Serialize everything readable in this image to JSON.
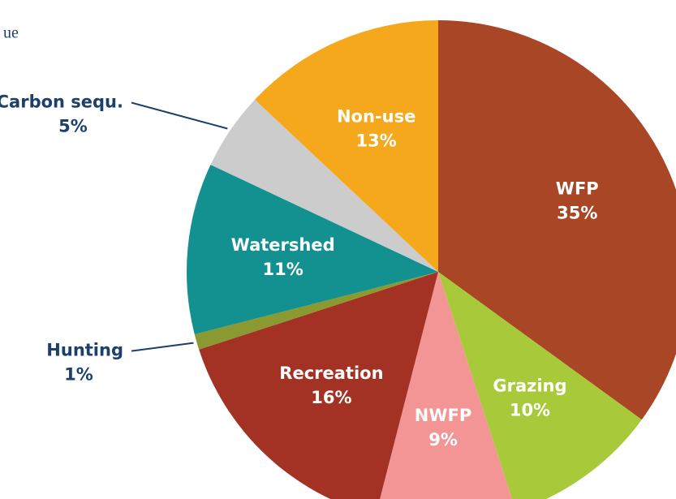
{
  "chart_data": {
    "type": "pie",
    "title": "ue",
    "categories": [
      "WFP",
      "Grazing",
      "NWFP",
      "Recreation",
      "Hunting",
      "Watershed",
      "Carbon sequ.",
      "Non-use"
    ],
    "values": [
      35,
      10,
      9,
      16,
      1,
      11,
      5,
      13
    ],
    "value_labels": [
      "35%",
      "10%",
      "9%",
      "16%",
      "1%",
      "11%",
      "5%",
      "13%"
    ],
    "colors": [
      "#a84626",
      "#a8c93a",
      "#f29594",
      "#a33224",
      "#8a9a30",
      "#139190",
      "#cccccc",
      "#f5a81c"
    ]
  }
}
